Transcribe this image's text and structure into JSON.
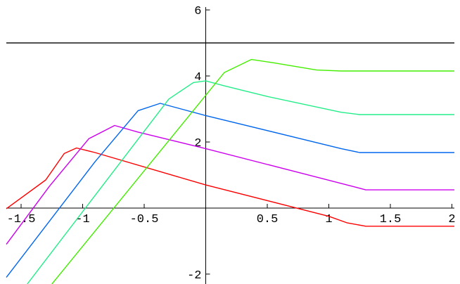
{
  "chart_data": {
    "type": "line",
    "xlim": [
      -1.62,
      2.02
    ],
    "ylim": [
      -2.3,
      6.3
    ],
    "xticks": [
      -1.5,
      -1,
      -0.5,
      0.5,
      1,
      1.5,
      2
    ],
    "yticks": [
      -2,
      2,
      4,
      6
    ],
    "reference_line": 5,
    "reference_color": "#000000",
    "series": [
      {
        "color": "#ff0000",
        "x": [
          -1.62,
          -1.3,
          -1.15,
          -1.05,
          -0.9,
          0,
          1.0,
          1.15,
          1.3,
          2.02
        ],
        "values": [
          -0.02,
          0.85,
          1.65,
          1.82,
          1.68,
          0.7,
          -0.25,
          -0.45,
          -0.55,
          -0.55
        ]
      },
      {
        "color": "#cc00ee",
        "x": [
          -1.62,
          -1.27,
          -0.95,
          -0.74,
          -0.55,
          0,
          1.2,
          1.3,
          2.02
        ],
        "values": [
          -1.1,
          0.66,
          2.1,
          2.5,
          2.3,
          1.8,
          0.65,
          0.55,
          0.55
        ]
      },
      {
        "color": "#0066ee",
        "x": [
          -1.62,
          -0.9,
          -0.55,
          -0.37,
          -0.2,
          0,
          1.1,
          1.25,
          2.02
        ],
        "values": [
          -2.1,
          1.4,
          2.95,
          3.17,
          3.0,
          2.8,
          1.8,
          1.68,
          1.68
        ]
      },
      {
        "color": "#22ee88",
        "x": [
          -1.45,
          -0.3,
          -0.1,
          0,
          0.15,
          0.5,
          1.1,
          1.25,
          2.02
        ],
        "values": [
          -2.3,
          3.3,
          3.8,
          3.85,
          3.7,
          3.38,
          2.9,
          2.83,
          2.83
        ]
      },
      {
        "color": "#44ee00",
        "x": [
          -1.25,
          0.15,
          0.37,
          0.55,
          0.9,
          1.1,
          2.02
        ],
        "values": [
          -2.3,
          4.1,
          4.5,
          4.4,
          4.18,
          4.15,
          4.15
        ]
      }
    ]
  }
}
